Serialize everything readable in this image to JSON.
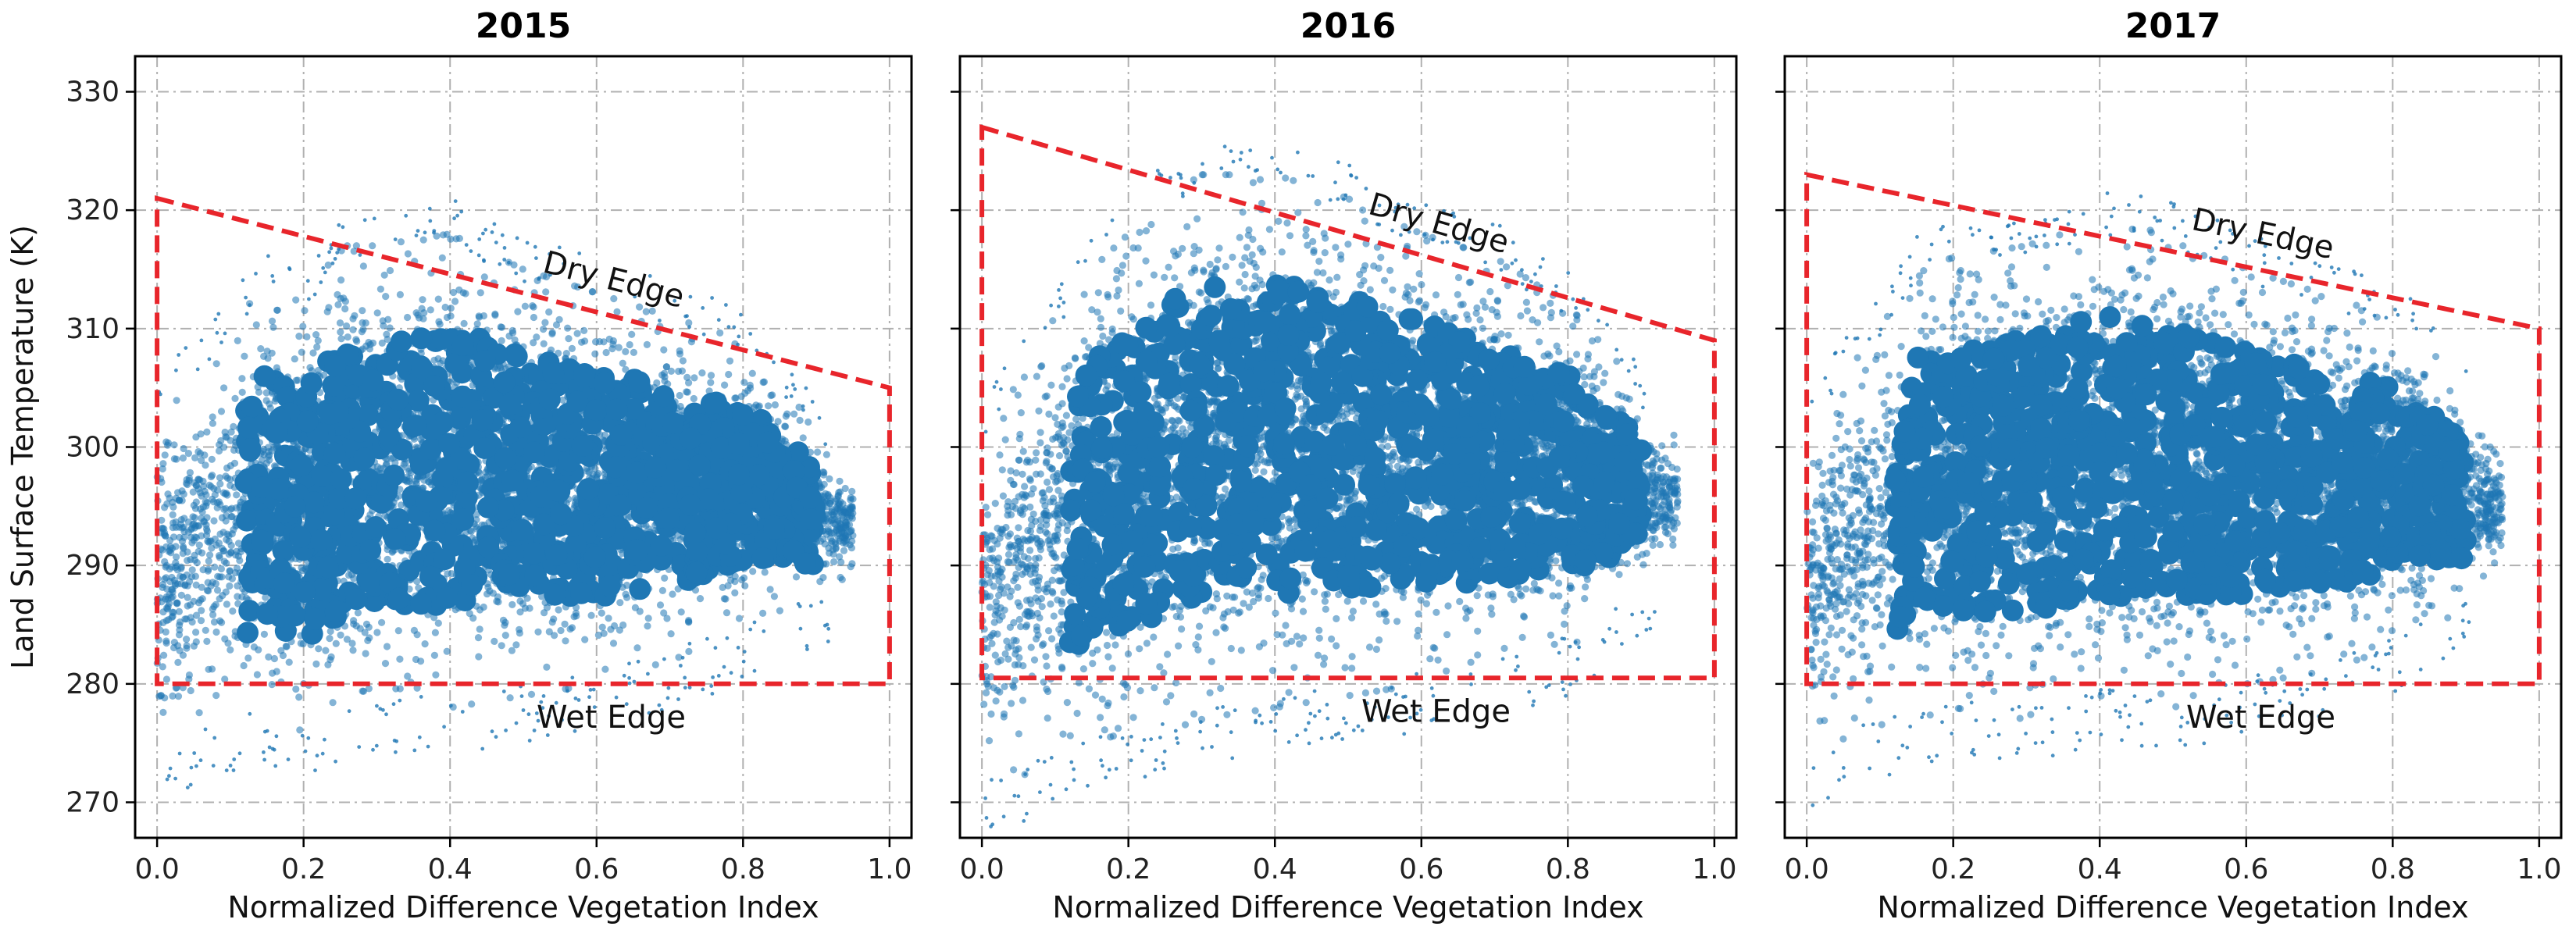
{
  "chart_data": [
    {
      "type": "scatter",
      "title": "2015",
      "xlabel": "Normalized Difference Vegetation Index",
      "ylabel": "Land Surface Temperature (K)",
      "xlim": [
        -0.03,
        1.03
      ],
      "ylim": [
        267,
        333
      ],
      "xticks": [
        0.0,
        0.2,
        0.4,
        0.6,
        0.8,
        1.0
      ],
      "xtick_labels": [
        "0.0",
        "0.2",
        "0.4",
        "0.6",
        "0.8",
        "1.0"
      ],
      "yticks": [
        270,
        280,
        290,
        300,
        310,
        320,
        330
      ],
      "ytick_labels": [
        "270",
        "280",
        "290",
        "300",
        "310",
        "320",
        "330"
      ],
      "grid": true,
      "point_color": "#1f77b4",
      "edge_color": "#e8252b",
      "dry_edge": {
        "label": "Dry Edge",
        "x": [
          0.0,
          1.0
        ],
        "y": [
          321,
          305
        ]
      },
      "wet_edge": {
        "label": "Wet Edge",
        "x": [
          0.0,
          1.0
        ],
        "y": [
          280,
          280
        ]
      },
      "cloud_profile": [
        {
          "x": 0.0,
          "low": 274,
          "high": 303
        },
        {
          "x": 0.05,
          "low": 276,
          "high": 305
        },
        {
          "x": 0.1,
          "low": 277,
          "high": 309
        },
        {
          "x": 0.15,
          "low": 278,
          "high": 313
        },
        {
          "x": 0.2,
          "low": 277,
          "high": 311
        },
        {
          "x": 0.25,
          "low": 278,
          "high": 316
        },
        {
          "x": 0.3,
          "low": 279,
          "high": 316
        },
        {
          "x": 0.4,
          "low": 279,
          "high": 317
        },
        {
          "x": 0.5,
          "low": 280,
          "high": 314
        },
        {
          "x": 0.6,
          "low": 281,
          "high": 312
        },
        {
          "x": 0.7,
          "low": 283,
          "high": 310
        },
        {
          "x": 0.8,
          "low": 285,
          "high": 308
        },
        {
          "x": 0.87,
          "low": 287,
          "high": 303
        },
        {
          "x": 0.93,
          "low": 288,
          "high": 297
        }
      ]
    },
    {
      "type": "scatter",
      "title": "2016",
      "xlabel": "Normalized Difference Vegetation Index",
      "ylabel": "",
      "xlim": [
        -0.03,
        1.03
      ],
      "ylim": [
        267,
        333
      ],
      "xticks": [
        0.0,
        0.2,
        0.4,
        0.6,
        0.8,
        1.0
      ],
      "xtick_labels": [
        "0.0",
        "0.2",
        "0.4",
        "0.6",
        "0.8",
        "1.0"
      ],
      "yticks": [
        270,
        280,
        290,
        300,
        310,
        320,
        330
      ],
      "ytick_labels": [],
      "grid": true,
      "point_color": "#1f77b4",
      "edge_color": "#e8252b",
      "dry_edge": {
        "label": "Dry Edge",
        "x": [
          0.0,
          1.0
        ],
        "y": [
          327,
          309
        ]
      },
      "wet_edge": {
        "label": "Wet Edge",
        "x": [
          0.0,
          1.0
        ],
        "y": [
          280.5,
          280.5
        ]
      },
      "cloud_profile": [
        {
          "x": 0.0,
          "low": 272,
          "high": 300
        },
        {
          "x": 0.05,
          "low": 273,
          "high": 305
        },
        {
          "x": 0.1,
          "low": 275,
          "high": 310
        },
        {
          "x": 0.15,
          "low": 276,
          "high": 314
        },
        {
          "x": 0.2,
          "low": 277,
          "high": 317
        },
        {
          "x": 0.25,
          "low": 277,
          "high": 320
        },
        {
          "x": 0.3,
          "low": 278,
          "high": 322
        },
        {
          "x": 0.4,
          "low": 279,
          "high": 322
        },
        {
          "x": 0.5,
          "low": 280,
          "high": 320
        },
        {
          "x": 0.6,
          "low": 281,
          "high": 317
        },
        {
          "x": 0.7,
          "low": 282,
          "high": 315
        },
        {
          "x": 0.8,
          "low": 284,
          "high": 311
        },
        {
          "x": 0.87,
          "low": 287,
          "high": 306
        },
        {
          "x": 0.93,
          "low": 290,
          "high": 300
        }
      ]
    },
    {
      "type": "scatter",
      "title": "2017",
      "xlabel": "Normalized Difference Vegetation Index",
      "ylabel": "",
      "xlim": [
        -0.03,
        1.03
      ],
      "ylim": [
        267,
        333
      ],
      "xticks": [
        0.0,
        0.2,
        0.4,
        0.6,
        0.8,
        1.0
      ],
      "xtick_labels": [
        "0.0",
        "0.2",
        "0.4",
        "0.6",
        "0.8",
        "1.0"
      ],
      "yticks": [
        270,
        280,
        290,
        300,
        310,
        320,
        330
      ],
      "ytick_labels": [],
      "grid": true,
      "point_color": "#1f77b4",
      "edge_color": "#e8252b",
      "dry_edge": {
        "label": "Dry Edge",
        "x": [
          0.0,
          1.0
        ],
        "y": [
          323,
          310
        ]
      },
      "wet_edge": {
        "label": "Wet Edge",
        "x": [
          0.0,
          1.0
        ],
        "y": [
          280,
          280
        ]
      },
      "cloud_profile": [
        {
          "x": 0.0,
          "low": 274,
          "high": 302
        },
        {
          "x": 0.05,
          "low": 276,
          "high": 305
        },
        {
          "x": 0.1,
          "low": 277,
          "high": 309
        },
        {
          "x": 0.15,
          "low": 278,
          "high": 314
        },
        {
          "x": 0.2,
          "low": 279,
          "high": 315
        },
        {
          "x": 0.3,
          "low": 278,
          "high": 316
        },
        {
          "x": 0.4,
          "low": 280,
          "high": 318
        },
        {
          "x": 0.5,
          "low": 279,
          "high": 317
        },
        {
          "x": 0.6,
          "low": 281,
          "high": 314
        },
        {
          "x": 0.7,
          "low": 282,
          "high": 312
        },
        {
          "x": 0.8,
          "low": 284,
          "high": 310
        },
        {
          "x": 0.87,
          "low": 286,
          "high": 306
        },
        {
          "x": 0.93,
          "low": 289,
          "high": 299
        }
      ]
    }
  ]
}
